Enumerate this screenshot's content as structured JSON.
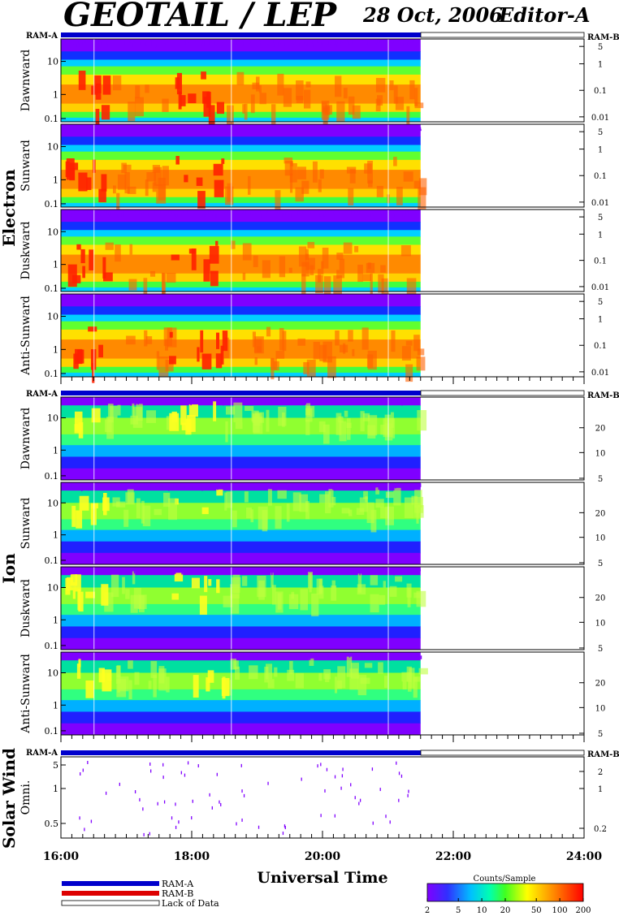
{
  "header": {
    "title": "GEOTAIL / LEP",
    "date": "28 Oct, 2006",
    "editor": "Editor-A"
  },
  "ram_labels": {
    "a": "RAM-A",
    "b": "RAM-B"
  },
  "groups": [
    {
      "id": "electron",
      "label": "Electron"
    },
    {
      "id": "ion",
      "label": "Ion"
    },
    {
      "id": "solarwind",
      "label": "Solar Wind"
    }
  ],
  "chart_data": {
    "type": "heatmap",
    "xlabel": "Universal Time",
    "x_tick_labels": [
      "16:00",
      "18:00",
      "20:00",
      "22:00",
      "24:00"
    ],
    "xlim_hours": [
      16,
      24
    ],
    "data_coverage_hours": [
      16,
      21.5
    ],
    "panels": [
      {
        "group": "electron",
        "label": "Dawnward",
        "left_ticks": [
          "10",
          "1",
          "0.1"
        ],
        "right_ticks": [
          "5",
          "1",
          "0.1",
          "0.01"
        ]
      },
      {
        "group": "electron",
        "label": "Sunward",
        "left_ticks": [
          "10",
          "1",
          "0.1"
        ],
        "right_ticks": [
          "5",
          "1",
          "0.1",
          "0.01"
        ]
      },
      {
        "group": "electron",
        "label": "Duskward",
        "left_ticks": [
          "10",
          "1",
          "0.1"
        ],
        "right_ticks": [
          "5",
          "1",
          "0.1",
          "0.01"
        ]
      },
      {
        "group": "electron",
        "label": "Anti-Sunward",
        "left_ticks": [
          "10",
          "1",
          "0.1"
        ],
        "right_ticks": [
          "5",
          "1",
          "0.1",
          "0.01"
        ]
      },
      {
        "group": "ion",
        "label": "Dawnward",
        "left_ticks": [
          "10",
          "1",
          "0.1"
        ],
        "right_ticks": [
          "20",
          "10",
          "5"
        ]
      },
      {
        "group": "ion",
        "label": "Sunward",
        "left_ticks": [
          "10",
          "1",
          "0.1"
        ],
        "right_ticks": [
          "20",
          "10",
          "5"
        ]
      },
      {
        "group": "ion",
        "label": "Duskward",
        "left_ticks": [
          "10",
          "1",
          "0.1"
        ],
        "right_ticks": [
          "20",
          "10",
          "5"
        ]
      },
      {
        "group": "ion",
        "label": "Anti-Sunward",
        "left_ticks": [
          "10",
          "1",
          "0.1"
        ],
        "right_ticks": [
          "20",
          "10",
          "5"
        ]
      },
      {
        "group": "solarwind",
        "label": "Omni.",
        "left_ticks": [
          "5",
          "1",
          "0.5"
        ],
        "right_ticks": [
          "2",
          "1",
          "0.2"
        ]
      }
    ],
    "colorbar": {
      "title": "Counts/Sample",
      "ticks": [
        "2",
        "5",
        "10",
        "20",
        "50",
        "100",
        "200"
      ]
    },
    "legend": [
      {
        "label": "RAM-A",
        "color": "#0000cc"
      },
      {
        "label": "RAM-B",
        "color": "#dd0000"
      },
      {
        "label": "Lack of Data",
        "color": "#ffffff"
      }
    ]
  }
}
